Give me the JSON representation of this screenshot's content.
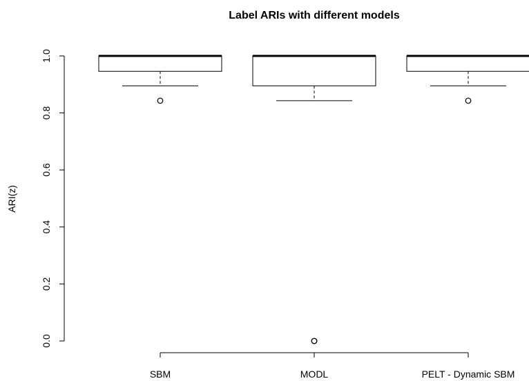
{
  "chart_data": {
    "type": "boxplot",
    "title": "Label ARIs with different  models",
    "xlabel": "",
    "ylabel": "ARI(z)",
    "ylim": [
      0,
      1
    ],
    "yticks": [
      "0.0",
      "0.2",
      "0.4",
      "0.6",
      "0.8",
      "1.0"
    ],
    "categories": [
      "SBM",
      "MODL",
      "PELT - Dynamic SBM"
    ],
    "boxes": [
      {
        "name": "SBM",
        "whisker_low": 0.895,
        "q1": 0.946,
        "median": 1.0,
        "q3": 1.0,
        "whisker_high": 1.0,
        "outliers": [
          0.843
        ]
      },
      {
        "name": "MODL",
        "whisker_low": 0.843,
        "q1": 0.895,
        "median": 1.0,
        "q3": 1.0,
        "whisker_high": 1.0,
        "outliers": [
          0.0,
          0.0
        ]
      },
      {
        "name": "PELT - Dynamic SBM",
        "whisker_low": 0.895,
        "q1": 0.946,
        "median": 1.0,
        "q3": 1.0,
        "whisker_high": 1.0,
        "outliers": [
          0.843
        ]
      }
    ],
    "grid": false,
    "legend": "none",
    "colors": {
      "stroke": "#000000",
      "fill": "#ffffff"
    }
  }
}
